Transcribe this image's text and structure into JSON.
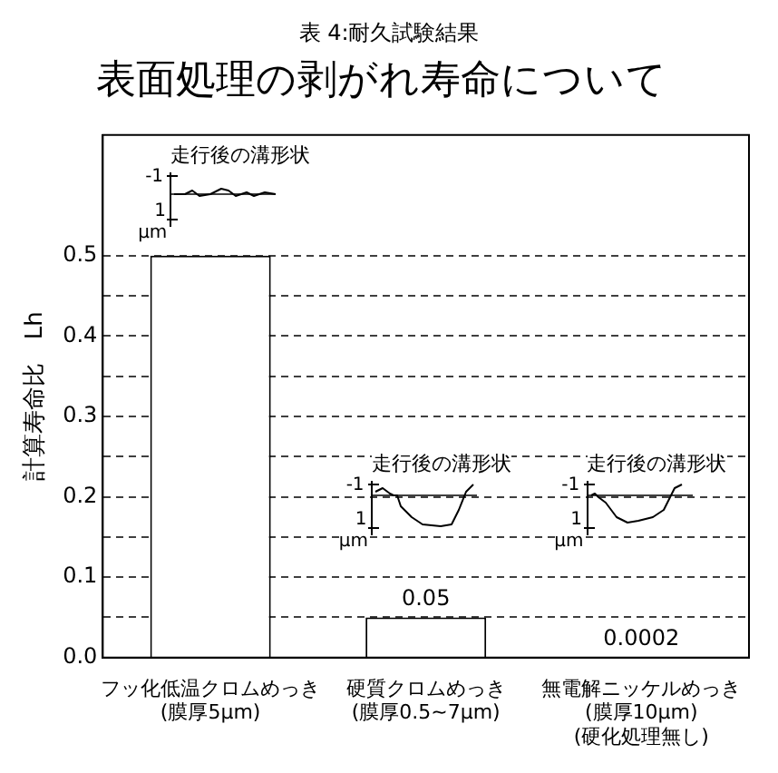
{
  "chart_data": {
    "type": "bar",
    "title": "表面処理の剥がれ寿命について",
    "ylabel": "計算寿命比　Lh",
    "categories": [
      "フッ化低温クロムめっき\n(膜厚5μm)",
      "硬質クロムめっき\n(膜厚0.5~7μm)",
      "無電解ニッケルめっき\n(膜厚10μm)\n(硬化処理無し)"
    ],
    "values": [
      0.5,
      0.05,
      0.0002
    ],
    "value_labels": [
      null,
      "0.05",
      "0.0002"
    ],
    "color": "#ffffff",
    "ylim": [
      0,
      0.65
    ],
    "yticks": [
      {
        "value": 0,
        "label": "0.0"
      },
      {
        "value": 0.05,
        "label": null
      },
      0.1,
      {
        "value": 0.15,
        "label": null
      },
      0.2,
      {
        "value": 0.25,
        "label": null
      },
      0.3,
      {
        "value": 0.35,
        "label": null
      },
      0.4,
      {
        "value": 0.45,
        "label": null
      },
      0.5
    ],
    "grid": "y",
    "legend": false,
    "annotations": [
      "表 4:耐久試験結果",
      "走行後の溝形状",
      "-1",
      "1",
      "μm",
      "走行後の溝形状",
      "-1",
      "1",
      "μm",
      "走行後の溝形状",
      "-1",
      "1",
      "μm"
    ]
  }
}
